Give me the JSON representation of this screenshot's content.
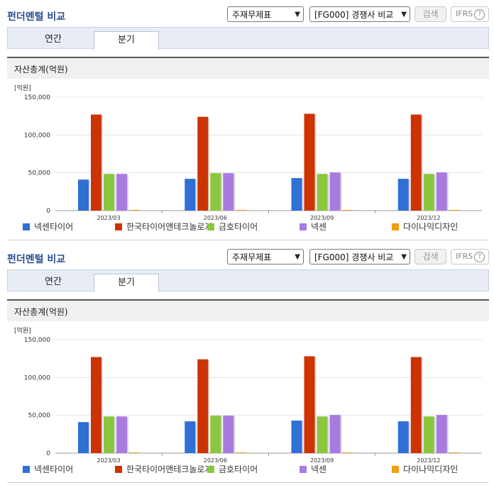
{
  "panels": [
    {
      "title": "펀더멘털 비교",
      "select_statement": "주재무제표",
      "select_compare": "[FG000] 경쟁사 비교",
      "search_label": "검색",
      "ifrs_label": "IFRS",
      "ifrs_help": "?",
      "tabs": [
        {
          "label": "연간"
        },
        {
          "label": "분기"
        }
      ],
      "active_tab": 1,
      "chart_title": "자산총계(억원)"
    },
    {
      "title": "펀더멘털 비교",
      "select_statement": "주재무제표",
      "select_compare": "[FG000] 경쟁사 비교",
      "search_label": "검색",
      "ifrs_label": "IFRS",
      "ifrs_help": "?",
      "tabs": [
        {
          "label": "연간"
        },
        {
          "label": "분기"
        }
      ],
      "active_tab": 1,
      "chart_title": "자산총계(억원)"
    }
  ],
  "colors": {
    "넥센타이어": "#2f6fd6",
    "한국타이어앤테크놀로지": "#cc3300",
    "금호타이어": "#8cc63f",
    "넥센": "#a97be0",
    "다이나믹디자인": "#f39c12"
  },
  "chart_data": [
    {
      "type": "bar",
      "title": "자산총계(억원)",
      "unit_label": "[억원]",
      "categories": [
        "2023/03",
        "2023/06",
        "2023/09",
        "2023/12"
      ],
      "ylim": [
        0,
        150000
      ],
      "yticks": [
        "0",
        "50,000",
        "100,000",
        "150,000"
      ],
      "grid": true,
      "legend_position": "bottom",
      "series": [
        {
          "name": "넥센타이어",
          "values": [
            41000,
            42000,
            43000,
            42000
          ]
        },
        {
          "name": "한국타이어앤테크놀로지",
          "values": [
            127000,
            124000,
            128000,
            127000
          ]
        },
        {
          "name": "금호타이어",
          "values": [
            48500,
            49500,
            48500,
            48500
          ]
        },
        {
          "name": "넥센",
          "values": [
            48500,
            49500,
            50500,
            50500
          ]
        },
        {
          "name": "다이나믹디자인",
          "values": [
            900,
            900,
            900,
            900
          ]
        }
      ]
    },
    {
      "type": "bar",
      "title": "자산총계(억원)",
      "unit_label": "[억원]",
      "categories": [
        "2023/03",
        "2023/06",
        "2023/09",
        "2023/12"
      ],
      "ylim": [
        0,
        150000
      ],
      "yticks": [
        "0",
        "50,000",
        "100,000",
        "150,000"
      ],
      "grid": true,
      "legend_position": "bottom",
      "series": [
        {
          "name": "넥센타이어",
          "values": [
            41000,
            42000,
            43000,
            42000
          ]
        },
        {
          "name": "한국타이어앤테크놀로지",
          "values": [
            127000,
            124000,
            128000,
            127000
          ]
        },
        {
          "name": "금호타이어",
          "values": [
            48500,
            49500,
            48500,
            48500
          ]
        },
        {
          "name": "넥센",
          "values": [
            48500,
            49500,
            50500,
            50500
          ]
        },
        {
          "name": "다이나믹디자인",
          "values": [
            900,
            900,
            900,
            900
          ]
        }
      ]
    }
  ]
}
